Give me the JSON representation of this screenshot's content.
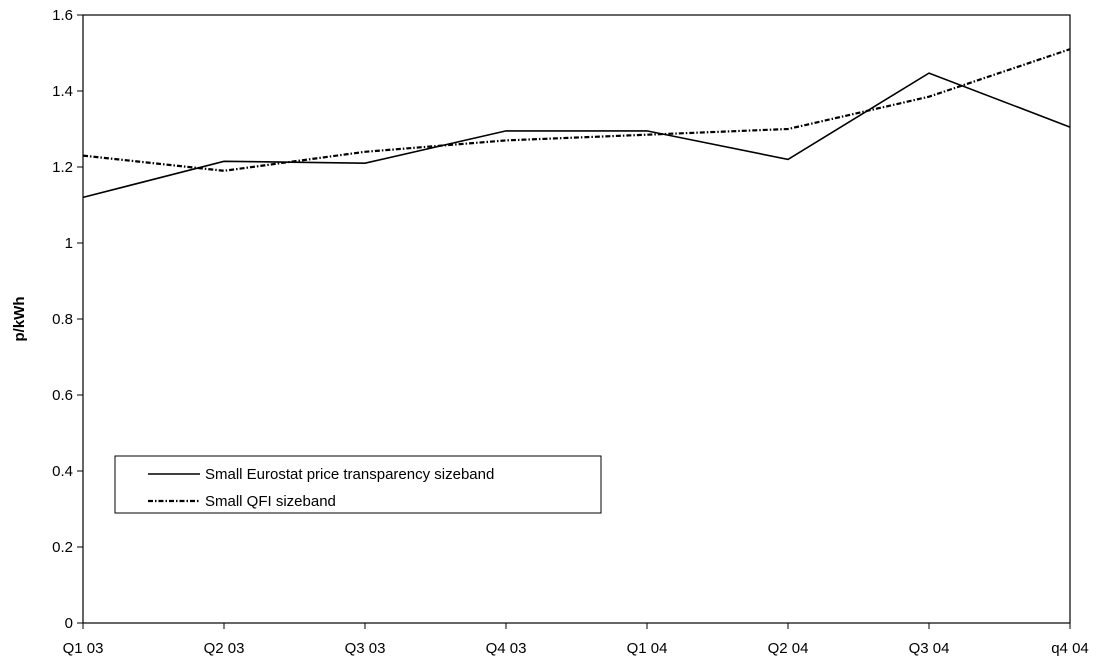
{
  "chart_data": {
    "type": "line",
    "title": "",
    "xlabel": "",
    "ylabel": "p/kWh",
    "categories": [
      "Q1 03",
      "Q2 03",
      "Q3 03",
      "Q4 03",
      "Q1 04",
      "Q2 04",
      "Q3 04",
      "q4 04"
    ],
    "ylim": [
      0,
      1.6
    ],
    "yticks": [
      "0",
      "0.2",
      "0.4",
      "0.6",
      "0.8",
      "1",
      "1.2",
      "1.4",
      "1.6"
    ],
    "grid": false,
    "legend_position": "bottom-left",
    "series": [
      {
        "name": "Small Eurostat price transparency sizeband",
        "style": "solid",
        "color": "#000000",
        "values": [
          1.12,
          1.215,
          1.21,
          1.295,
          1.295,
          1.22,
          1.447,
          1.305
        ]
      },
      {
        "name": "Small QFI sizeband",
        "style": "dash-dot",
        "color": "#000000",
        "values": [
          1.23,
          1.19,
          1.24,
          1.27,
          1.285,
          1.3,
          1.385,
          1.51
        ]
      }
    ]
  }
}
